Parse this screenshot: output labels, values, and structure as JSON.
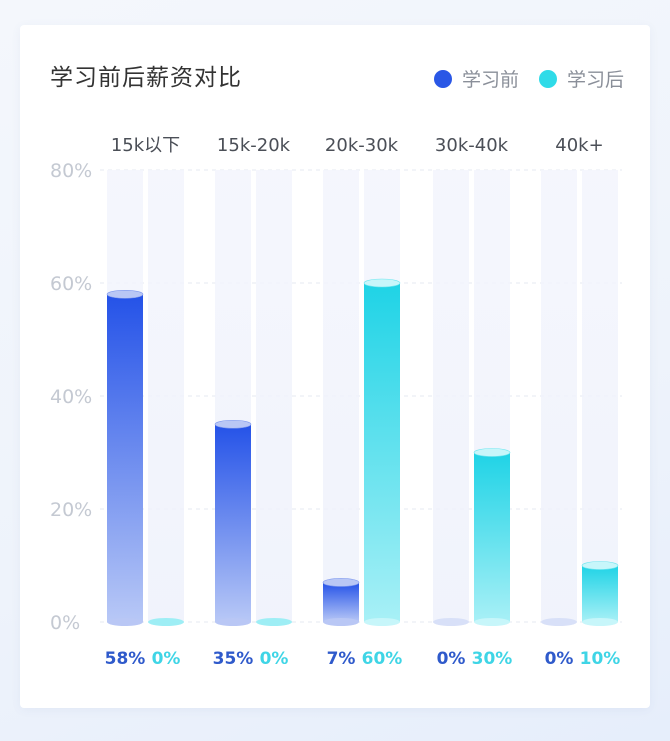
{
  "colors": {
    "before": "#2a57e6",
    "after": "#2fdbe8",
    "before_label": "#2f5acb",
    "after_label": "#3fd5e6"
  },
  "chart_data": {
    "type": "bar",
    "title": "学习前后薪资对比",
    "categories": [
      "15k以下",
      "15k-20k",
      "20k-30k",
      "30k-40k",
      "40k+"
    ],
    "series": [
      {
        "name": "学习前",
        "values": [
          58,
          35,
          7,
          0,
          0
        ],
        "labels": [
          "58%",
          "35%",
          "7%",
          "0%",
          "0%"
        ]
      },
      {
        "name": "学习后",
        "values": [
          0,
          0,
          60,
          30,
          10
        ],
        "labels": [
          "0%",
          "0%",
          "60%",
          "30%",
          "10%"
        ]
      }
    ],
    "ylim": [
      0,
      80
    ],
    "yticks": [
      0,
      20,
      40,
      60,
      80
    ],
    "ytick_labels": [
      "0%",
      "20%",
      "40%",
      "60%",
      "80%"
    ],
    "grid": true,
    "legend": "top-right"
  }
}
